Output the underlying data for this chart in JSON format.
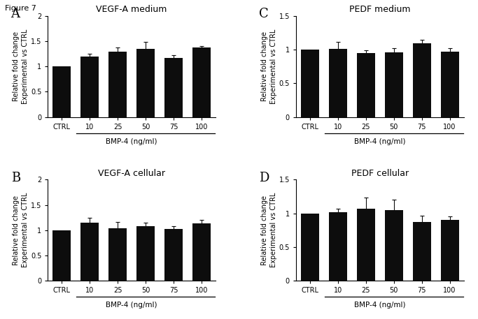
{
  "panels": [
    {
      "label": "A",
      "title": "VEGF-A medium",
      "categories": [
        "CTRL",
        "10",
        "25",
        "50",
        "75",
        "100"
      ],
      "values": [
        1.0,
        1.2,
        1.3,
        1.35,
        1.17,
        1.37
      ],
      "errors": [
        0.0,
        0.05,
        0.07,
        0.14,
        0.05,
        0.04
      ],
      "ylim": [
        0,
        2
      ],
      "yticks": [
        0,
        0.5,
        1.0,
        1.5,
        2.0
      ],
      "yticklabels": [
        "0",
        "0.5",
        "1",
        "1.5",
        "2"
      ],
      "subplot_index": 1,
      "underline": true
    },
    {
      "label": "C",
      "title": "PEDF medium",
      "categories": [
        "CTRL",
        "10",
        "25",
        "50",
        "75",
        "100"
      ],
      "values": [
        1.0,
        1.01,
        0.95,
        0.96,
        1.09,
        0.97
      ],
      "errors": [
        0.0,
        0.1,
        0.04,
        0.06,
        0.06,
        0.05
      ],
      "ylim": [
        0,
        1.5
      ],
      "yticks": [
        0,
        0.5,
        1.0,
        1.5
      ],
      "yticklabels": [
        "0",
        "0.5",
        "1",
        "1.5"
      ],
      "subplot_index": 2,
      "underline": true
    },
    {
      "label": "B",
      "title": "VEGF-A cellular",
      "categories": [
        "CTRL",
        "10",
        "25",
        "50",
        "75",
        "100"
      ],
      "values": [
        1.0,
        1.15,
        1.04,
        1.08,
        1.03,
        1.14
      ],
      "errors": [
        0.0,
        0.1,
        0.12,
        0.07,
        0.05,
        0.07
      ],
      "ylim": [
        0,
        2
      ],
      "yticks": [
        0,
        0.5,
        1.0,
        1.5,
        2.0
      ],
      "yticklabels": [
        "0",
        "0.5",
        "1",
        "1.5",
        "2"
      ],
      "subplot_index": 3,
      "underline": true
    },
    {
      "label": "D",
      "title": "PEDF cellular",
      "categories": [
        "CTRL",
        "10",
        "25",
        "50",
        "75",
        "100"
      ],
      "values": [
        1.0,
        1.02,
        1.07,
        1.05,
        0.87,
        0.9
      ],
      "errors": [
        0.0,
        0.05,
        0.16,
        0.15,
        0.1,
        0.06
      ],
      "ylim": [
        0,
        1.5
      ],
      "yticks": [
        0,
        0.5,
        1.0,
        1.5
      ],
      "yticklabels": [
        "0",
        "0.5",
        "1",
        "1.5"
      ],
      "subplot_index": 4,
      "underline": true
    }
  ],
  "bar_color": "#0d0d0d",
  "bar_width": 0.65,
  "ylabel_line1": "Relative fold change",
  "ylabel_line2": "Experimental vs CTRL",
  "xlabel": "BMP-4 (ng/ml)",
  "figure_label": "Figure 7",
  "error_capsize": 2,
  "error_color": "#0d0d0d",
  "error_lw": 0.8,
  "title_fontsize": 9,
  "label_fontsize": 13,
  "tick_fontsize": 7,
  "ylabel_fontsize": 7,
  "xlabel_fontsize": 7.5
}
